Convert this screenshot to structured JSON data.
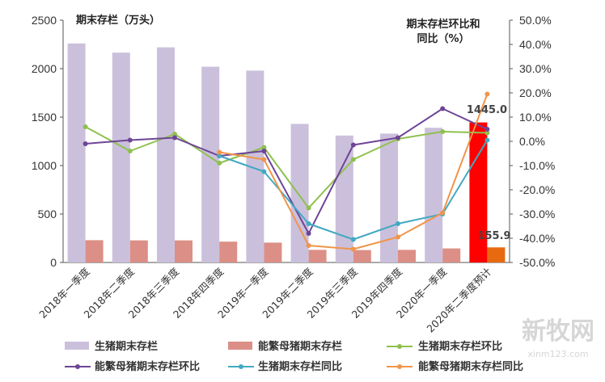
{
  "chart_data": {
    "type": "bar",
    "left_title": "期末存栏（万头）",
    "right_title_lines": [
      "期末存栏环比和",
      "同比（%）"
    ],
    "categories": [
      "2018年一季度",
      "2018年二季度",
      "2018年三季度",
      "2018年四季度",
      "2019年一季度",
      "2019年二季度",
      "2019年三季度",
      "2019年四季度",
      "2020年一季度",
      "2020年二季度预计"
    ],
    "left_axis": {
      "min": 0,
      "max": 2500,
      "ticks": [
        "0",
        "500",
        "1000",
        "1500",
        "2000",
        "2500"
      ]
    },
    "right_axis": {
      "min": -50,
      "max": 50,
      "ticks": [
        "-50.0%",
        "-40.0%",
        "-30.0%",
        "-20.0%",
        "-10.0%",
        "0.0%",
        "10.0%",
        "20.0%",
        "30.0%",
        "40.0%",
        "50.0%"
      ]
    },
    "bar_series": [
      {
        "name": "生猪期末存栏",
        "color": "#cbc0dc",
        "last_color": "#ff0000",
        "values": [
          2260,
          2165,
          2220,
          2020,
          1980,
          1430,
          1310,
          1330,
          1390,
          1445
        ]
      },
      {
        "name": "能繁母猪期末存栏",
        "color": "#dc8f86",
        "last_color": "#e86a10",
        "values": [
          230,
          228,
          228,
          215,
          205,
          130,
          128,
          130,
          145,
          155.9
        ]
      }
    ],
    "line_series": [
      {
        "name": "生猪期末存栏环比",
        "color": "#8fc04f",
        "values": [
          6,
          -4,
          3,
          -9,
          -2.5,
          -27.5,
          -7.5,
          1,
          4,
          3.5
        ]
      },
      {
        "name": "能繁母猪期末存栏环比",
        "color": "#6e4596",
        "values": [
          -1,
          0.5,
          1.5,
          -6,
          -4,
          -38,
          -1.5,
          1.5,
          13.5,
          5
        ]
      },
      {
        "name": "生猪期末存栏同比",
        "color": "#43a9c2",
        "values": [
          null,
          null,
          null,
          -6,
          -12.5,
          -34,
          -40.5,
          -34,
          -30,
          0.5
        ]
      },
      {
        "name": "能繁母猪期末存栏同比",
        "color": "#f0954a",
        "values": [
          null,
          null,
          null,
          -4.5,
          -7.5,
          -43,
          -44.5,
          -39.5,
          -29.5,
          19.5
        ]
      }
    ],
    "data_labels": [
      "1445.0",
      "155.9"
    ]
  },
  "watermark": {
    "main": "新牧网",
    "sub": "xinm123.com"
  }
}
